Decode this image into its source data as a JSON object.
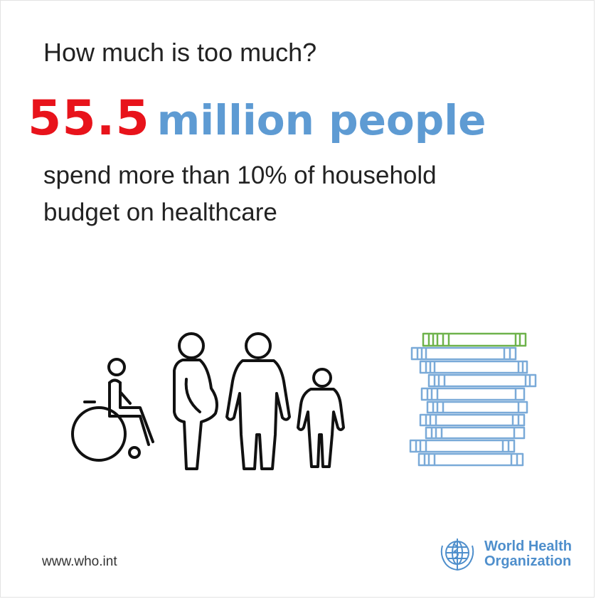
{
  "question": "How much is too much?",
  "headline": {
    "number": "55.5",
    "phrase": "million people"
  },
  "description": {
    "line1": "spend more than 10% of household",
    "line2": "budget on healthcare"
  },
  "footer": {
    "url": "www.who.int"
  },
  "logo": {
    "line1": "World Health",
    "line2": "Organization"
  },
  "colors": {
    "accent_red": "#e8131b",
    "accent_blue": "#5e9bd3",
    "cash_green": "#6eb24b"
  },
  "icons": [
    "wheelchair-user-icon",
    "pregnant-woman-icon",
    "man-icon",
    "child-icon",
    "banknote-stack-icon",
    "who-emblem-icon"
  ]
}
